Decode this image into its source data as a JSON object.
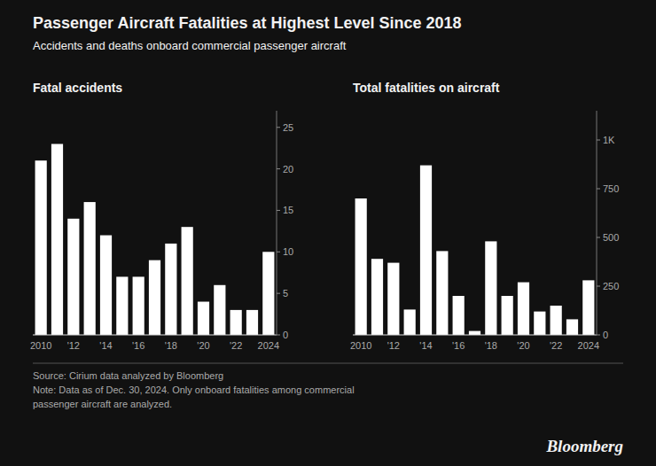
{
  "title": "Passenger Aircraft Fatalities at Highest Level Since 2018",
  "subtitle": "Accidents and deaths onboard commercial passenger aircraft",
  "annotations": [
    "Source: Cirium data analyzed by Bloomberg\nNote: Data as of Dec. 30, 2024. Only onboard fatalities among commercial\npassenger aircraft are analyzed.",
    "Bloomberg"
  ],
  "chart_data": [
    {
      "type": "bar",
      "title": "Fatal accidents",
      "categories": [
        "2010",
        null,
        "'12",
        null,
        "'14",
        null,
        "'16",
        null,
        "'18",
        null,
        "'20",
        null,
        "'22",
        null,
        "2024"
      ],
      "values": [
        21,
        23,
        14,
        16,
        12,
        7,
        7,
        9,
        11,
        13,
        4,
        6,
        3,
        3,
        10
      ],
      "color": "#ffffff",
      "ylim": [
        0,
        27
      ],
      "yticks": [
        0,
        5,
        10,
        15,
        20,
        25
      ],
      "grid": false
    },
    {
      "type": "bar",
      "title": "Total fatalities on aircraft",
      "categories": [
        "2010",
        null,
        "'12",
        null,
        "'14",
        null,
        "'16",
        null,
        "'18",
        null,
        "'20",
        null,
        "'22",
        null,
        "2024"
      ],
      "values": [
        700,
        390,
        370,
        130,
        870,
        430,
        200,
        20,
        480,
        200,
        270,
        120,
        150,
        80,
        280
      ],
      "color": "#ffffff",
      "ylim": [
        0,
        1150
      ],
      "yticks": [
        0,
        250,
        500,
        750,
        {
          "value": 1000,
          "label": "1K"
        }
      ],
      "grid": false
    }
  ]
}
